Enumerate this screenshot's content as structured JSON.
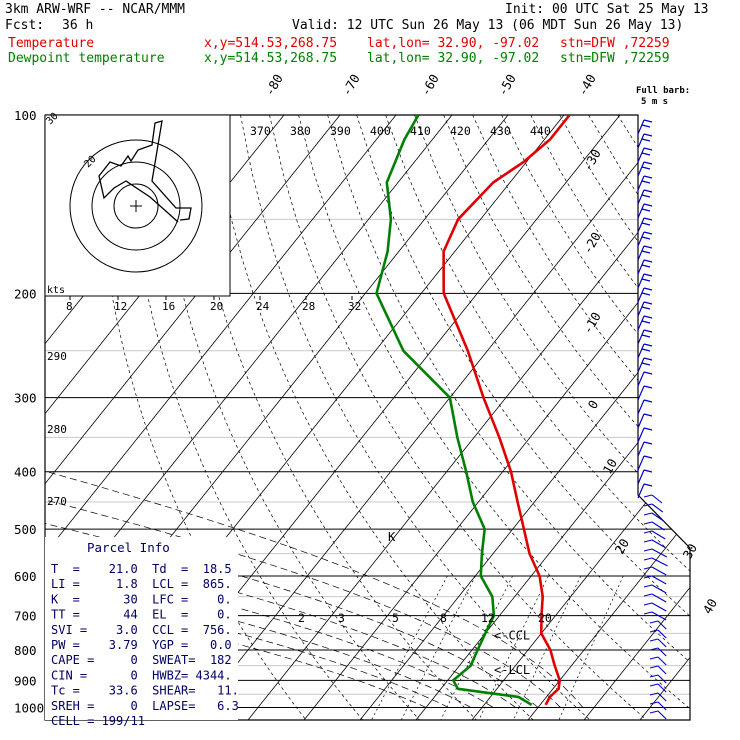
{
  "header": {
    "title": "3km ARW-WRF -- NCAR/MMM",
    "init": "Init: 00 UTC Sat 25 May 13",
    "fcst_label": "Fcst:",
    "fcst_value": "36 h",
    "valid": "Valid: 12 UTC Sun 26 May 13 (06 MDT Sun 26 May 13)",
    "temp_label": "Temperature",
    "dew_label": "Dewpoint temperature",
    "xy": "x,y=514.53,268.75",
    "latlon": "lat,lon= 32.90, -97.02",
    "station": "stn=DFW ,72259"
  },
  "colors": {
    "temperature": "#e00000",
    "dewpoint": "#008000",
    "wind": "#0000c8"
  },
  "chart_data": {
    "type": "line",
    "subtype": "skew-T log-p sounding",
    "y_axis": "pressure (hPa), log scale",
    "pressure_ticks": [
      "100",
      "200",
      "300",
      "400",
      "500",
      "600",
      "700",
      "800",
      "900",
      "1000"
    ],
    "isotherm_labels": [
      "-80",
      "-70",
      "-60",
      "-50",
      "-40",
      "-30",
      "-20",
      "-10",
      "0",
      "10",
      "20",
      "30",
      "40"
    ],
    "theta_labels_top": [
      "370",
      "380",
      "390",
      "400",
      "410",
      "420",
      "430",
      "440"
    ],
    "theta_labels_left": [
      "290",
      "280",
      "270"
    ],
    "mixing_ratio_labels": [
      "2",
      "3",
      "5",
      "8",
      "12",
      "20"
    ],
    "hodograph_speed_labels": [
      "8",
      "12",
      "16",
      "20",
      "24",
      "28",
      "32"
    ],
    "hodograph_units": "kts",
    "full_barb_label": "Full barb:",
    "full_barb_value": "5 m s",
    "series": [
      {
        "name": "Temperature",
        "points": [
          {
            "p": 990,
            "t": 21.0
          },
          {
            "p": 960,
            "t": 20.6
          },
          {
            "p": 930,
            "t": 21.0
          },
          {
            "p": 900,
            "t": 20.0
          },
          {
            "p": 850,
            "t": 17.0
          },
          {
            "p": 800,
            "t": 14.0
          },
          {
            "p": 750,
            "t": 10.0
          },
          {
            "p": 700,
            "t": 7.5
          },
          {
            "p": 650,
            "t": 5.0
          },
          {
            "p": 600,
            "t": 1.5
          },
          {
            "p": 550,
            "t": -3.5
          },
          {
            "p": 500,
            "t": -8.0
          },
          {
            "p": 450,
            "t": -13.0
          },
          {
            "p": 400,
            "t": -18.5
          },
          {
            "p": 350,
            "t": -25.5
          },
          {
            "p": 300,
            "t": -34.0
          },
          {
            "p": 250,
            "t": -43.5
          },
          {
            "p": 200,
            "t": -56.0
          },
          {
            "p": 170,
            "t": -62.0
          },
          {
            "p": 150,
            "t": -64.0
          },
          {
            "p": 130,
            "t": -63.0
          },
          {
            "p": 120,
            "t": -60.5
          },
          {
            "p": 110,
            "t": -59.0
          },
          {
            "p": 100,
            "t": -59.0
          }
        ]
      },
      {
        "name": "Dewpoint temperature",
        "points": [
          {
            "p": 990,
            "t": 18.5
          },
          {
            "p": 960,
            "t": 15.0
          },
          {
            "p": 930,
            "t": 3.0
          },
          {
            "p": 900,
            "t": 1.0
          },
          {
            "p": 850,
            "t": 2.0
          },
          {
            "p": 800,
            "t": 1.0
          },
          {
            "p": 750,
            "t": 0.0
          },
          {
            "p": 700,
            "t": -1.0
          },
          {
            "p": 650,
            "t": -4.0
          },
          {
            "p": 600,
            "t": -9.0
          },
          {
            "p": 550,
            "t": -12.0
          },
          {
            "p": 500,
            "t": -15.0
          },
          {
            "p": 450,
            "t": -21.0
          },
          {
            "p": 400,
            "t": -26.5
          },
          {
            "p": 350,
            "t": -33.0
          },
          {
            "p": 300,
            "t": -40.0
          },
          {
            "p": 250,
            "t": -55.0
          },
          {
            "p": 200,
            "t": -68.0
          },
          {
            "p": 170,
            "t": -72.0
          },
          {
            "p": 150,
            "t": -76.0
          },
          {
            "p": 130,
            "t": -82.0
          },
          {
            "p": 110,
            "t": -85.0
          },
          {
            "p": 100,
            "t": -86.0
          }
        ]
      }
    ],
    "level_markers": [
      {
        "label": "<-CCL",
        "p": 756
      },
      {
        "label": "<-LCL",
        "p": 865
      }
    ]
  },
  "parcel_info": {
    "title": "Parcel Info",
    "rows": [
      "T  =    21.0  Td  =  18.5",
      "LI =     1.8  LCL =  865.",
      "K  =      30  LFC =    0.",
      "TT =      44  EL  =    0.",
      "SVI =    3.0  CCL =  756.",
      "PW =    3.79  YGP =   0.0",
      "CAPE =     0  SWEAT=  182",
      "CIN =      0  HWBZ= 4344.",
      "Tc =    33.6  SHEAR=   11.",
      "SREH =     0  LAPSE=   6.3",
      "CELL = 199/11"
    ]
  }
}
